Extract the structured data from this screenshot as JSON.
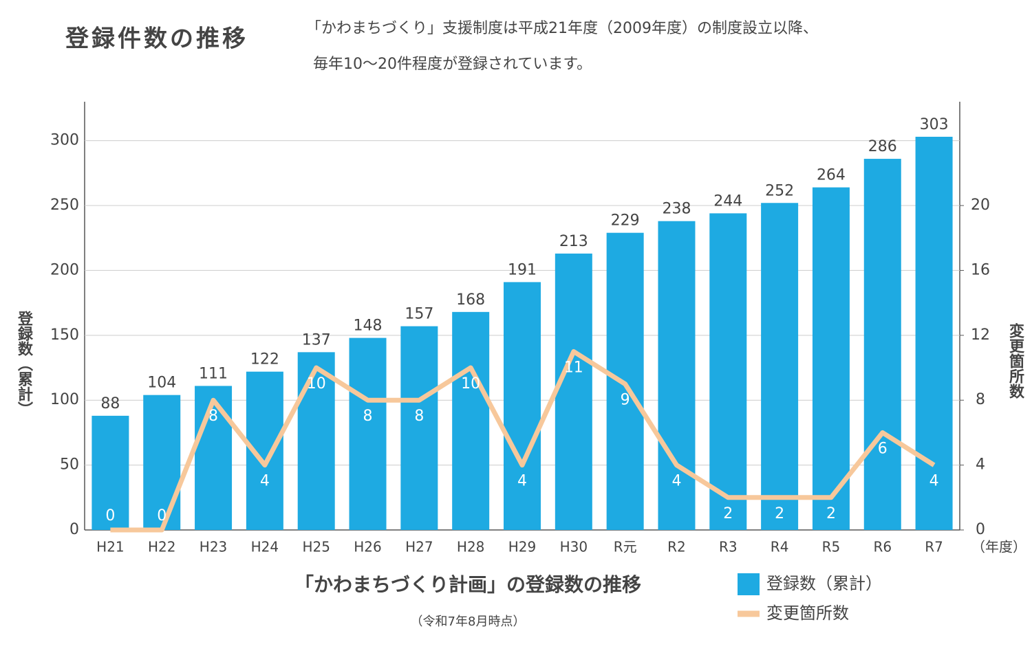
{
  "chart_data": {
    "type": "bar_line",
    "heading": "登録件数の推移",
    "description": [
      "「かわまちづくり」支援制度は平成21年度（2009年度）の制度設立以降、",
      "毎年10～20件程度が登録されています。"
    ],
    "title": "「かわまちづくり計画」の登録数の推移",
    "note": "（令和7年8月時点）",
    "x_unit": "（年度）",
    "ylabel": "登録数（累計）",
    "y2label": "変更箇所数",
    "categories": [
      "H21",
      "H22",
      "H23",
      "H24",
      "H25",
      "H26",
      "H27",
      "H28",
      "H29",
      "H30",
      "R元",
      "R2",
      "R3",
      "R4",
      "R5",
      "R6",
      "R7"
    ],
    "series": [
      {
        "name": "登録数（累計）",
        "color": "#1eaae2",
        "type": "bar",
        "values": [
          88,
          104,
          111,
          122,
          137,
          148,
          157,
          168,
          191,
          213,
          229,
          238,
          244,
          252,
          264,
          286,
          303
        ]
      },
      {
        "name": "変更箇所数",
        "color": "#f7c89b",
        "type": "line",
        "axis": "y2",
        "values": [
          0,
          0,
          8,
          4,
          10,
          8,
          8,
          10,
          4,
          11,
          9,
          4,
          2,
          2,
          2,
          6,
          4
        ]
      }
    ],
    "ylim": [
      0,
      330
    ],
    "yticks": [
      0,
      50,
      100,
      150,
      200,
      250,
      300
    ],
    "y2lim": [
      0,
      26.4
    ],
    "y2ticks": [
      0,
      4,
      8,
      12,
      16,
      20
    ],
    "grid": true
  }
}
